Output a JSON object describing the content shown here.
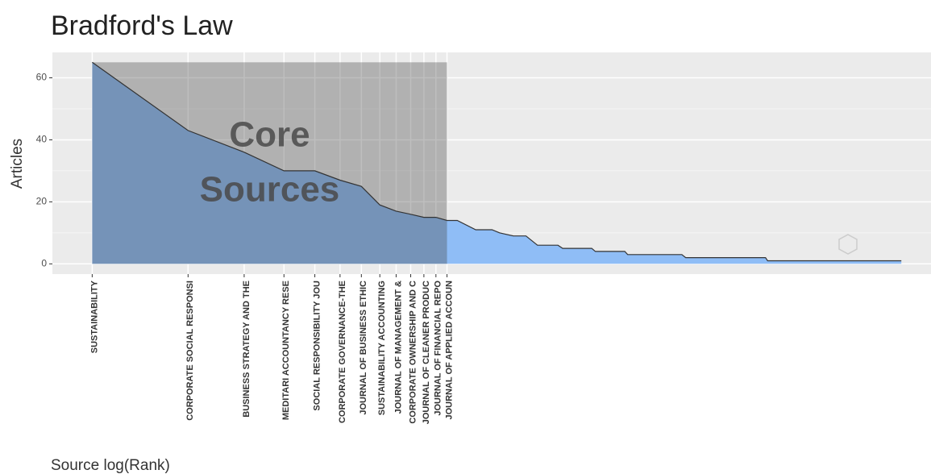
{
  "chart_data": {
    "type": "area",
    "title": "Bradford's Law",
    "x_label": "Source log(Rank)",
    "y_label": "Articles",
    "annotation": [
      "Core",
      "Sources"
    ],
    "x_scale": "log",
    "x": [
      1,
      2,
      3,
      4,
      5,
      6,
      7,
      8,
      9,
      10,
      11,
      12,
      13,
      14,
      16,
      18,
      19,
      21,
      23,
      25,
      29,
      30,
      37,
      38,
      47,
      48,
      71,
      73,
      130,
      132,
      347
    ],
    "categories": [
      "SUSTAINABILITY",
      "CORPORATE SOCIAL RESPONSI",
      "BUSINESS STRATEGY AND THE",
      "MEDITARI ACCOUNTANCY RESE",
      "SOCIAL RESPONSIBILITY JOU",
      "CORPORATE GOVERNANCE-THE",
      "JOURNAL OF BUSINESS ETHIC",
      "SUSTAINABILITY ACCOUNTING",
      "JOURNAL OF MANAGEMENT &",
      "CORPORATE OWNERSHIP AND C",
      "JOURNAL OF CLEANER PRODUC",
      "JOURNAL OF FINANCIAL REPO",
      "JOURNAL OF APPLIED ACCOUN",
      null,
      null,
      null,
      null,
      null,
      null,
      null,
      null,
      null,
      null,
      null,
      null,
      null,
      null,
      null,
      null,
      null,
      null
    ],
    "series": [
      {
        "name": "Articles",
        "color": "#8fbdf6",
        "values": [
          65,
          43,
          36,
          30,
          30,
          27,
          25,
          19,
          17,
          16,
          15,
          15,
          14,
          14,
          11,
          11,
          10,
          9,
          9,
          6,
          6,
          5,
          5,
          4,
          4,
          3,
          3,
          2,
          2,
          1,
          1
        ]
      }
    ],
    "core_range": [
      1,
      13
    ],
    "core_color": "#444444",
    "xlim": [
      0.75,
      430
    ],
    "ylim": [
      -3.3,
      68.2
    ],
    "yticks": [
      0,
      20,
      40,
      60
    ],
    "minor_yticks": [
      10,
      30,
      50
    ],
    "grid": true
  }
}
